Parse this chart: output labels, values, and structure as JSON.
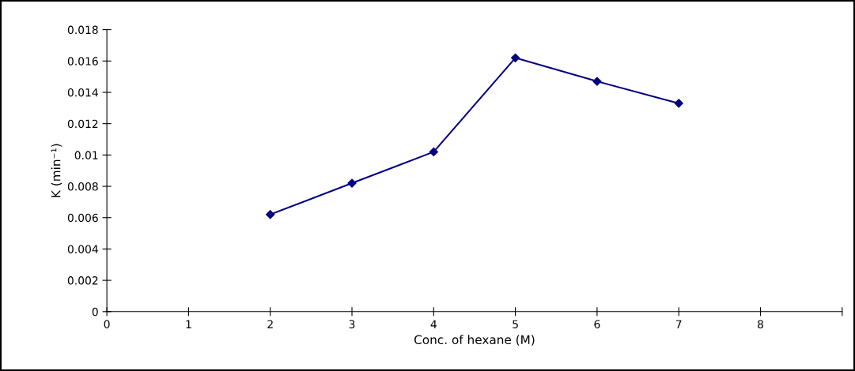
{
  "chart_data": {
    "type": "line",
    "xlabel": "Conc. of hexane (M)",
    "ylabel": "K (min⁻¹)",
    "x": [
      2,
      3,
      4,
      5,
      6,
      7
    ],
    "series": [
      {
        "color": "#000080",
        "values": [
          0.0062,
          0.0082,
          0.0102,
          0.0162,
          0.0147,
          0.0133
        ]
      }
    ],
    "xlim": [
      0,
      9
    ],
    "xticks": [
      0,
      1,
      2,
      3,
      4,
      5,
      6,
      7,
      8,
      {
        "value": 9,
        "label": null
      }
    ],
    "ylim": [
      0,
      0.018
    ],
    "yticks": [
      0,
      0.002,
      0.004,
      0.006,
      0.008,
      0.01,
      0.012,
      0.014,
      0.016,
      0.018
    ],
    "grid": false,
    "legend": false,
    "marker": "diamond",
    "line_style": "solid"
  }
}
